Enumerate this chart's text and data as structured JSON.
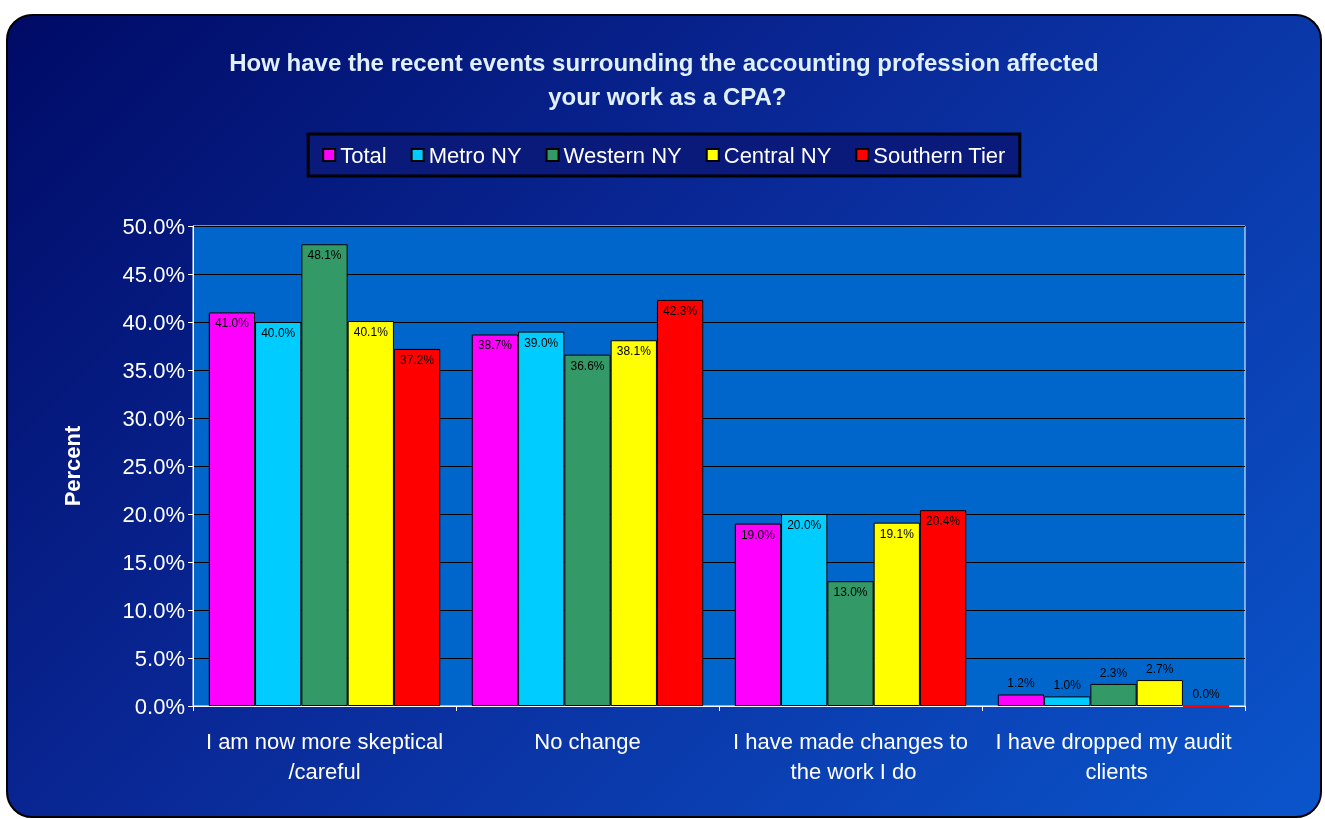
{
  "chart_data": {
    "type": "bar",
    "title": "How have the recent events surrounding the accounting profession affected your work as a CPA?",
    "ylabel": "Percent",
    "categories": [
      "I am now more skeptical/careful",
      "No change",
      "I have made changes to the work I do",
      "I have dropped my audit clients"
    ],
    "series": [
      {
        "name": "Total",
        "color": "#ff00ff",
        "values": [
          41.0,
          38.7,
          19.0,
          1.2
        ],
        "value_labels": [
          "41.0%",
          "38.7%",
          "19.0%",
          "1.2%"
        ]
      },
      {
        "name": "Metro NY",
        "color": "#00ccff",
        "values": [
          40.0,
          39.0,
          20.0,
          1.0
        ],
        "value_labels": [
          "40.0%",
          "39.0%",
          "20.0%",
          "1.0%"
        ]
      },
      {
        "name": "Western NY",
        "color": "#339966",
        "values": [
          48.1,
          36.6,
          13.0,
          2.3
        ],
        "value_labels": [
          "48.1%",
          "36.6%",
          "13.0%",
          "2.3%"
        ]
      },
      {
        "name": "Central NY",
        "color": "#ffff00",
        "values": [
          40.1,
          38.1,
          19.1,
          2.7
        ],
        "value_labels": [
          "40.1%",
          "38.1%",
          "19.1%",
          "2.7%"
        ]
      },
      {
        "name": "Southern Tier",
        "color": "#ff0000",
        "values": [
          37.2,
          42.3,
          20.4,
          0.0
        ],
        "value_labels": [
          "37.2%",
          "42.3%",
          "20.4%",
          "0.0%"
        ]
      }
    ],
    "ylim": [
      0,
      50
    ],
    "yticks": [
      {
        "value": 0,
        "label": "0.0%"
      },
      {
        "value": 5,
        "label": "5.0%"
      },
      {
        "value": 10,
        "label": "10.0%"
      },
      {
        "value": 15,
        "label": "15.0%"
      },
      {
        "value": 20,
        "label": "20.0%"
      },
      {
        "value": 25,
        "label": "25.0%"
      },
      {
        "value": 30,
        "label": "30.0%"
      },
      {
        "value": 35,
        "label": "35.0%"
      },
      {
        "value": 40,
        "label": "40.0%"
      },
      {
        "value": 45,
        "label": "45.0%"
      },
      {
        "value": 50,
        "label": "50.0%"
      }
    ],
    "grid": "y",
    "legend": "top"
  }
}
